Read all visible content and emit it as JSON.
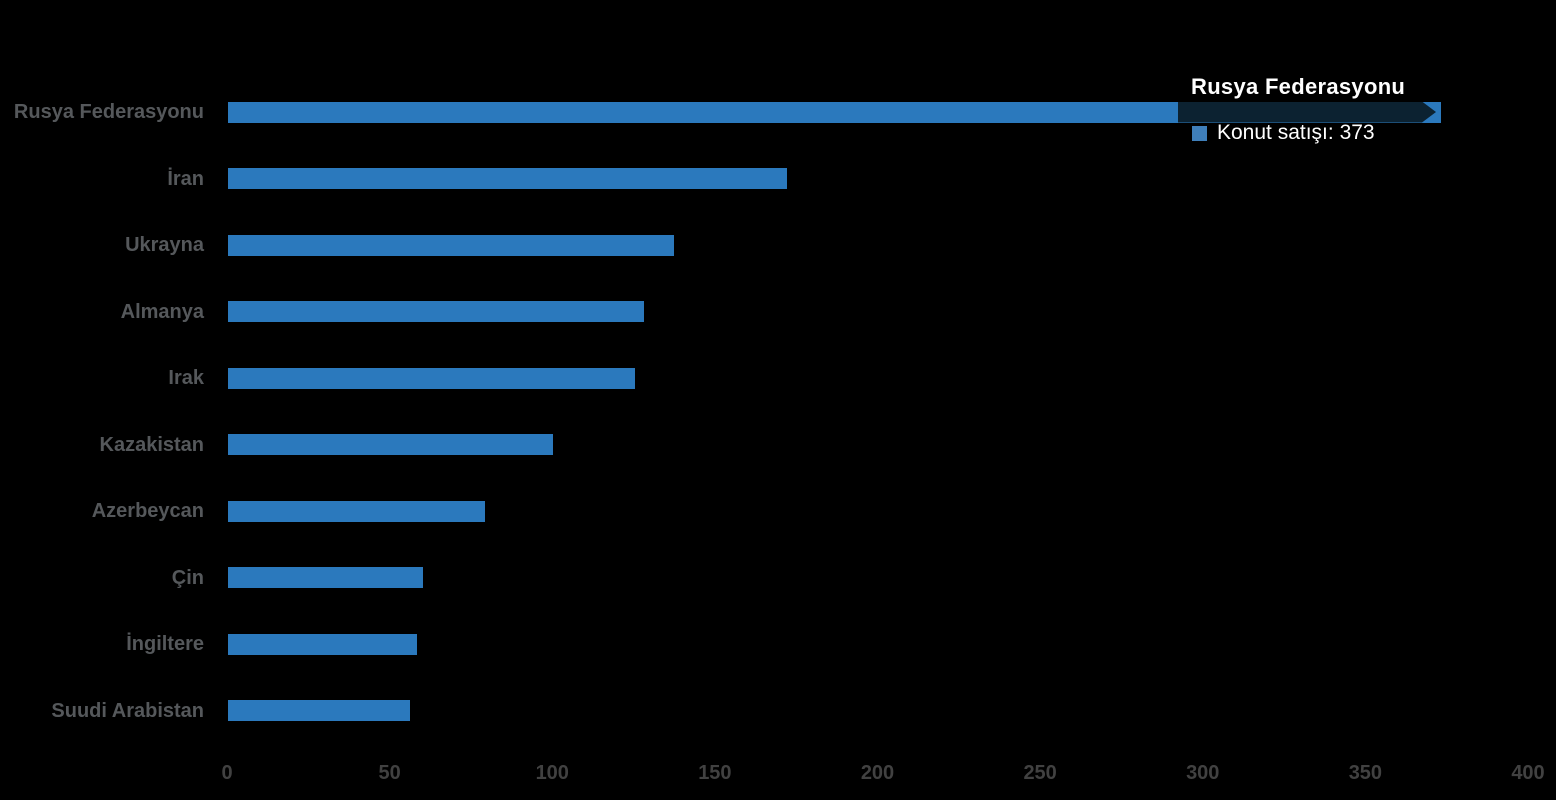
{
  "chart_data": {
    "type": "bar",
    "orientation": "horizontal",
    "title": "",
    "xlabel": "",
    "ylabel": "",
    "categories": [
      "Rusya Federasyonu",
      "İran",
      "Ukrayna",
      "Almanya",
      "Irak",
      "Kazakistan",
      "Azerbeycan",
      "Çin",
      "İngiltere",
      "Suudi Arabistan"
    ],
    "series": [
      {
        "name": "Konut satışı",
        "values": [
          373,
          172,
          137,
          128,
          125,
          100,
          79,
          60,
          58,
          56
        ]
      }
    ],
    "xlim": [
      0,
      400
    ],
    "x_ticks": [
      "0",
      "50",
      "100",
      "150",
      "200",
      "250",
      "300",
      "350",
      "400"
    ],
    "grid": false,
    "legend_position": "none",
    "bar_color": "#2b79bd",
    "category_label_color": "#55585b",
    "tick_label_color": "#414141",
    "background_color": "#000000",
    "highlighted_category": "Rusya Federasyonu"
  },
  "tooltip": {
    "title": "Rusya Federasyonu",
    "series_label": "Konut satışı",
    "value": "373",
    "text": "Konut satışı: 373",
    "swatch_color": "#3f7fba",
    "band_color": "#0c2231"
  }
}
